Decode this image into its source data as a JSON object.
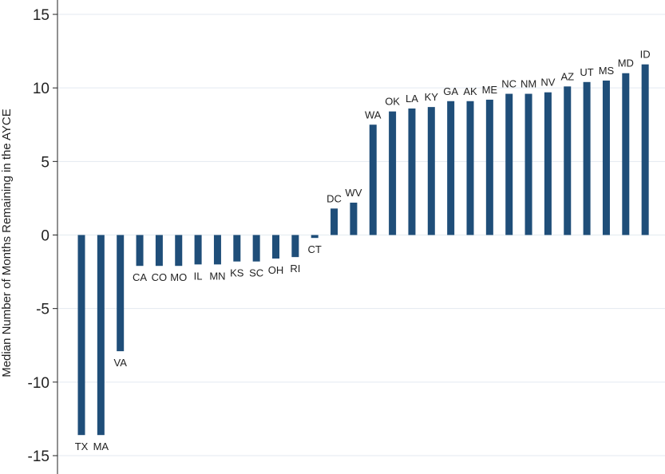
{
  "chart_data": {
    "type": "bar",
    "title": "",
    "xlabel": "",
    "ylabel": "Median Number of Months Remaining in the AYCE",
    "ylim": [
      -15,
      15
    ],
    "yticks": [
      15,
      10,
      5,
      0,
      -5,
      -10,
      -15
    ],
    "ytick_labels": [
      "15",
      "10",
      "5",
      "0",
      "-5",
      "-10",
      "-15"
    ],
    "grid": true,
    "bar_color": "#1f4e79",
    "grid_color": "#e3eaf0",
    "categories": [
      "TX",
      "MA",
      "VA",
      "CA",
      "CO",
      "MO",
      "IL",
      "MN",
      "KS",
      "SC",
      "OH",
      "RI",
      "CT",
      "DC",
      "WV",
      "WA",
      "OK",
      "LA",
      "KY",
      "GA",
      "AK",
      "ME",
      "NC",
      "NM",
      "NV",
      "AZ",
      "UT",
      "MS",
      "MD",
      "ID"
    ],
    "values": [
      -13.6,
      -13.6,
      -7.9,
      -2.1,
      -2.1,
      -2.1,
      -2.0,
      -2.0,
      -1.8,
      -1.8,
      -1.6,
      -1.5,
      -0.2,
      1.8,
      2.2,
      7.5,
      8.4,
      8.6,
      8.7,
      9.1,
      9.1,
      9.2,
      9.6,
      9.6,
      9.7,
      10.1,
      10.4,
      10.5,
      11.0,
      11.6
    ]
  }
}
